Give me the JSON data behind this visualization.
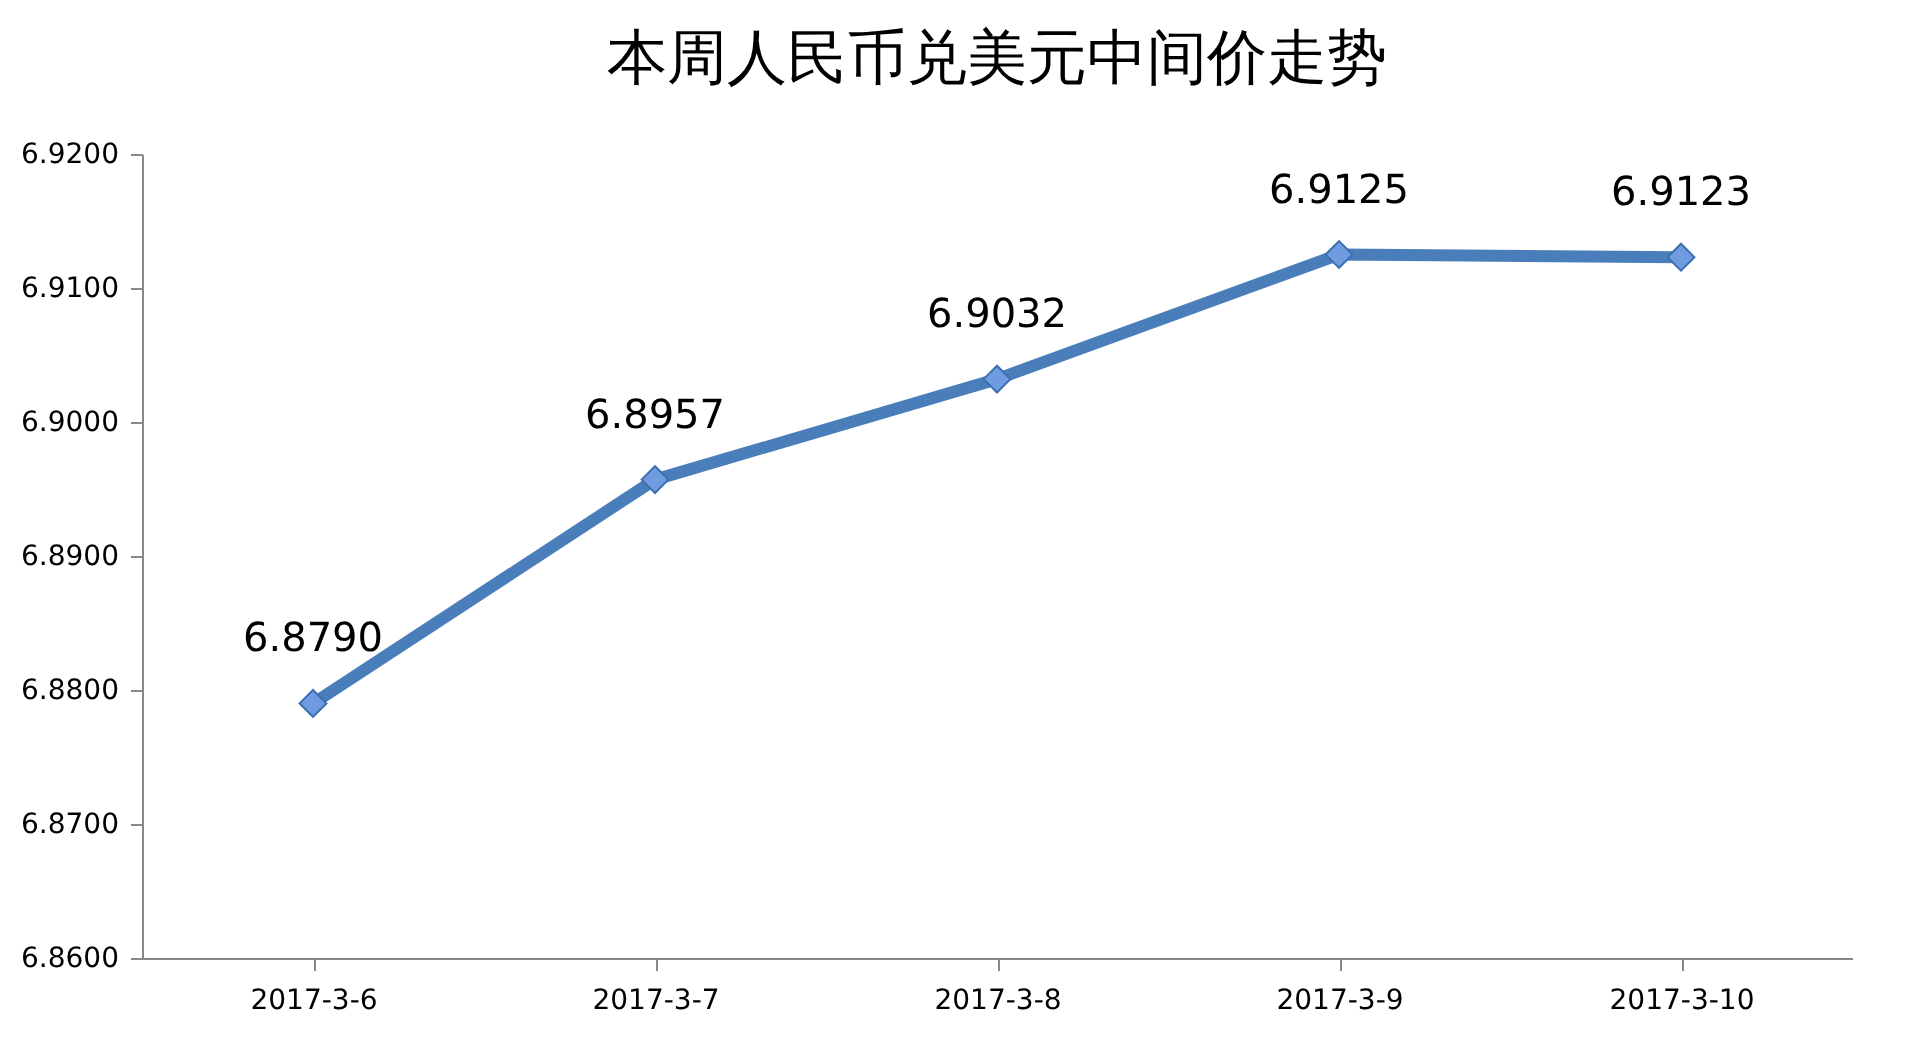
{
  "chart_data": {
    "type": "line",
    "title": "本周人民币兑美元中间价走势",
    "categories": [
      "2017-3-6",
      "2017-3-7",
      "2017-3-8",
      "2017-3-9",
      "2017-3-10"
    ],
    "series": [
      {
        "color": "#4a7ebb",
        "values": [
          6.879,
          6.8957,
          6.9032,
          6.9125,
          6.9123
        ],
        "value_labels": [
          "6.8790",
          "6.8957",
          "6.9032",
          "6.9125",
          "6.9123"
        ]
      }
    ],
    "ylim": [
      6.86,
      6.92
    ],
    "yticks": [
      {
        "value": 6.86,
        "label": "6.8600"
      },
      {
        "value": 6.87,
        "label": "6.8700"
      },
      {
        "value": 6.88,
        "label": "6.8800"
      },
      {
        "value": 6.89,
        "label": "6.8900"
      },
      {
        "value": 6.9,
        "label": "6.9000"
      },
      {
        "value": 6.91,
        "label": "6.9100"
      },
      {
        "value": 6.92,
        "label": "6.9200"
      }
    ],
    "marker": "diamond",
    "line_style": "solid",
    "grid": false
  }
}
